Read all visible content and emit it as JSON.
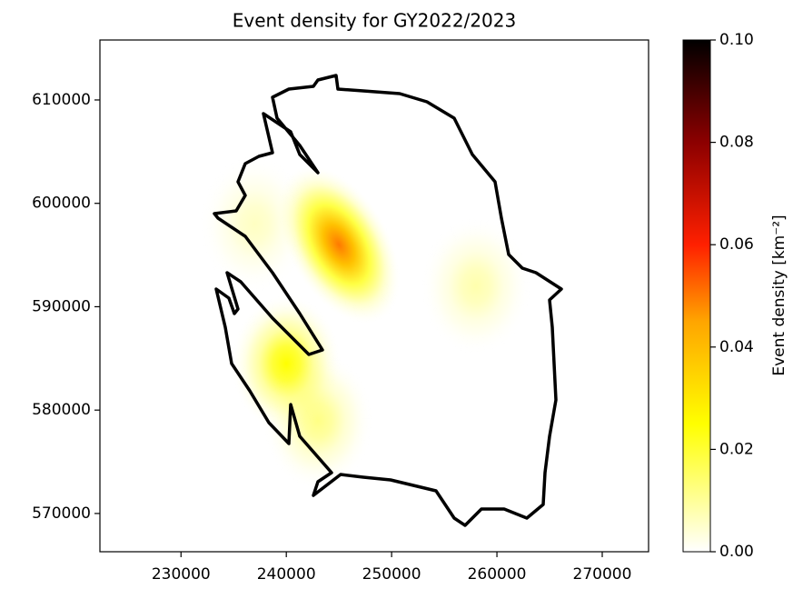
{
  "chart_data": {
    "type": "heatmap",
    "title": "Event density for GY2022/2023",
    "xlim": [
      222300,
      274400
    ],
    "ylim": [
      566300,
      615800
    ],
    "xticks": [
      230000,
      240000,
      250000,
      260000,
      270000
    ],
    "yticks": [
      570000,
      580000,
      590000,
      600000,
      610000
    ],
    "hotspots": [
      {
        "x": 245000,
        "y": 596000,
        "value": 0.05
      },
      {
        "x": 240000,
        "y": 584500,
        "value": 0.025
      },
      {
        "x": 237000,
        "y": 598000,
        "value": 0.006
      },
      {
        "x": 258000,
        "y": 592000,
        "value": 0.008
      },
      {
        "x": 243000,
        "y": 579000,
        "value": 0.012
      }
    ],
    "colorbar": {
      "label": "Event density [km⁻²]",
      "lim": [
        0,
        0.1
      ],
      "ticks": [
        {
          "value": 0,
          "label": "0.00"
        },
        {
          "value": 0.02,
          "label": "0.02"
        },
        {
          "value": 0.04,
          "label": "0.04"
        },
        {
          "value": 0.06,
          "label": "0.06"
        },
        {
          "value": 0.08,
          "label": "0.08"
        },
        {
          "value": 0.1,
          "label": "0.10"
        }
      ]
    }
  }
}
